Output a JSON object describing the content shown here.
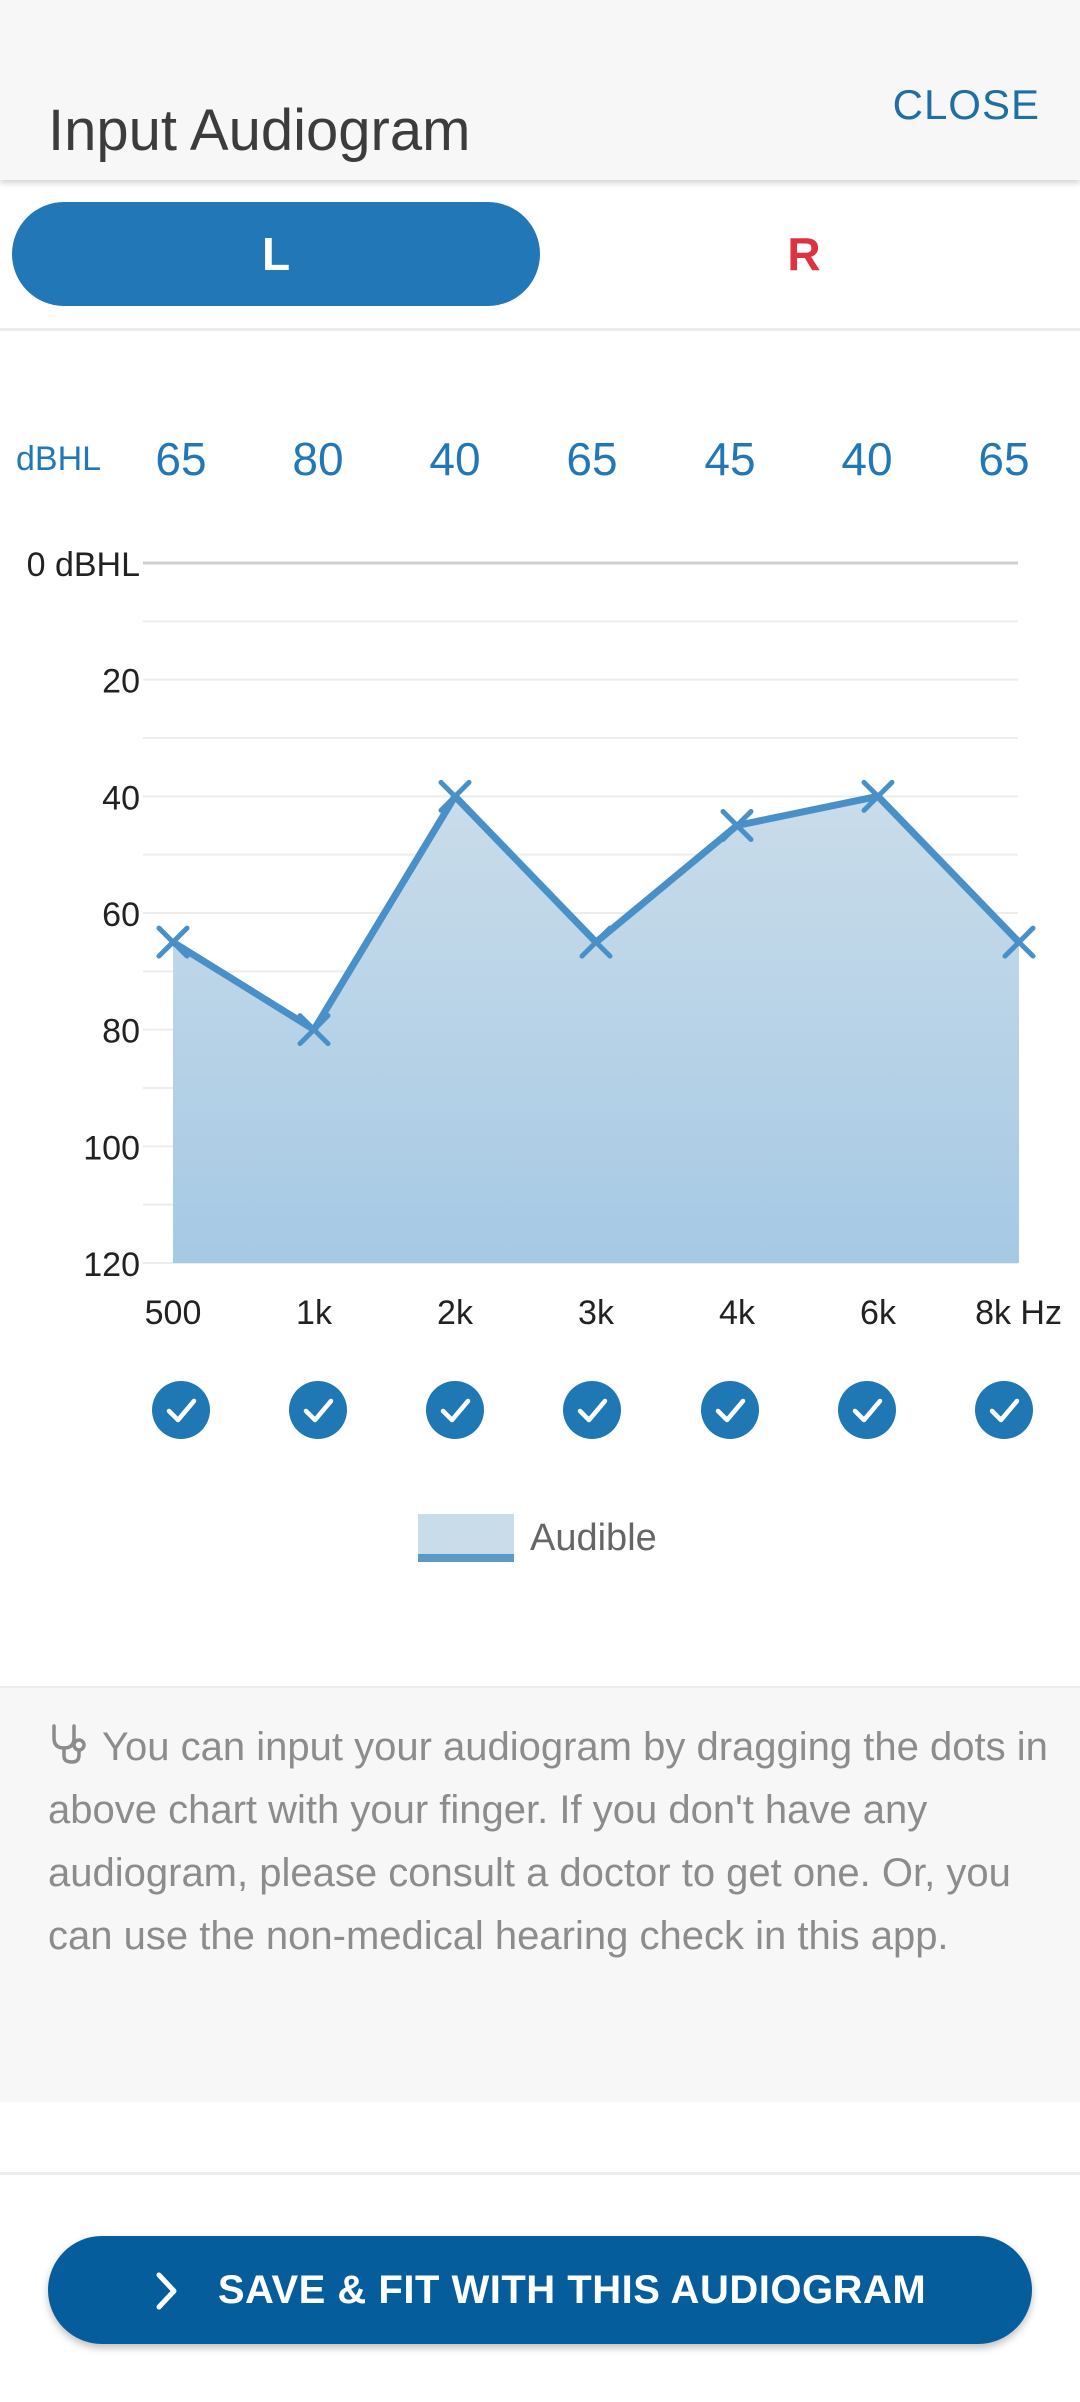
{
  "header": {
    "title": "Input Audiogram",
    "close_label": "CLOSE"
  },
  "tabs": [
    {
      "label": "L",
      "selected": true,
      "color": "#2277b7"
    },
    {
      "label": "R",
      "selected": false,
      "color": "#d9343f"
    }
  ],
  "chart_data": {
    "type": "area",
    "unit_label": "dBHL",
    "frequencies": [
      "500",
      "1k",
      "2k",
      "3k",
      "4k",
      "6k",
      "8k Hz"
    ],
    "values": [
      65,
      80,
      40,
      65,
      45,
      40,
      65
    ],
    "y_tick_labels": [
      "0 dBHL",
      "20",
      "40",
      "60",
      "80",
      "100",
      "120"
    ],
    "y_ticks": [
      0,
      20,
      40,
      60,
      80,
      100,
      120
    ],
    "ylim": [
      0,
      120
    ],
    "y_inverted": true,
    "grid": true,
    "checked": [
      true,
      true,
      true,
      true,
      true,
      true,
      true
    ],
    "legend": {
      "label": "Audible",
      "position": "bottom-center"
    },
    "colors": {
      "line": "#4a90c8",
      "fill": "#aacce6",
      "value_text": "#2277b7",
      "check": "#1f77b4"
    }
  },
  "info": {
    "icon": "stethoscope-icon",
    "text": "You can input your audiogram by dragging the dots in above chart with your finger. If you don't have any audiogram, please consult a doctor to get one. Or, you can use the non-medical hearing check in this app."
  },
  "footer": {
    "save_label": "SAVE & FIT WITH THIS AUDIOGRAM",
    "icon": "chevron-right-icon"
  }
}
